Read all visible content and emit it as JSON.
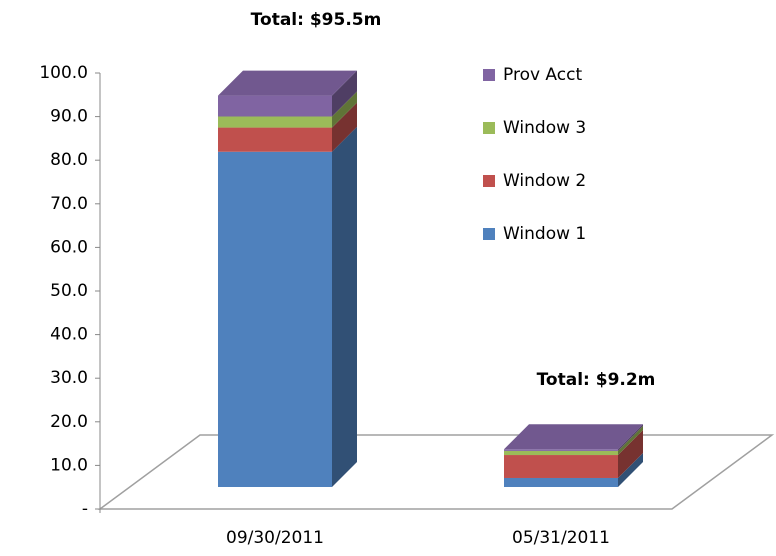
{
  "chart_data": {
    "type": "bar3d_stacked",
    "categories": [
      "09/30/2011",
      "05/31/2011"
    ],
    "series": [
      {
        "name": "Window 1",
        "color": "#4f81bd",
        "values": [
          81.8,
          2.2
        ]
      },
      {
        "name": "Window 2",
        "color": "#c0504d",
        "values": [
          5.9,
          5.6
        ]
      },
      {
        "name": "Window 3",
        "color": "#9bbb59",
        "values": [
          2.7,
          1.0
        ]
      },
      {
        "name": "Prov Acct",
        "color": "#8064a2",
        "values": [
          5.1,
          0.4
        ]
      }
    ],
    "annotations": [
      "Total: $95.5m",
      "Total: $9.2m"
    ],
    "ylim": [
      0,
      100
    ],
    "yticks": [
      {
        "value": 0,
        "label": "-"
      },
      {
        "value": 10,
        "label": "10.0"
      },
      {
        "value": 20,
        "label": "20.0"
      },
      {
        "value": 30,
        "label": "30.0"
      },
      {
        "value": 40,
        "label": "40.0"
      },
      {
        "value": 50,
        "label": "50.0"
      },
      {
        "value": 60,
        "label": "60.0"
      },
      {
        "value": 70,
        "label": "70.0"
      },
      {
        "value": 80,
        "label": "80.0"
      },
      {
        "value": 90,
        "label": "90.0"
      },
      {
        "value": 100,
        "label": "100.0"
      }
    ],
    "legend": "right"
  }
}
